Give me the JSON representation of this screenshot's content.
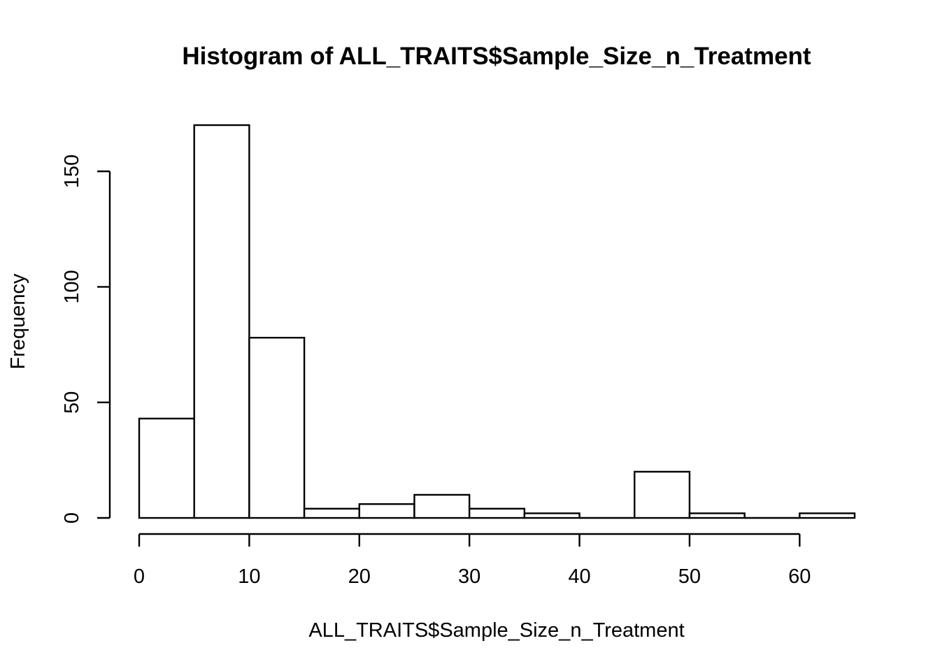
{
  "chart_data": {
    "type": "bar",
    "title": "Histogram of ALL_TRAITS$Sample_Size_n_Treatment",
    "xlabel": "ALL_TRAITS$Sample_Size_n_Treatment",
    "ylabel": "Frequency",
    "bins": [
      {
        "start": 0,
        "end": 5,
        "count": 43
      },
      {
        "start": 5,
        "end": 10,
        "count": 170
      },
      {
        "start": 10,
        "end": 15,
        "count": 78
      },
      {
        "start": 15,
        "end": 20,
        "count": 4
      },
      {
        "start": 20,
        "end": 25,
        "count": 6
      },
      {
        "start": 25,
        "end": 30,
        "count": 10
      },
      {
        "start": 30,
        "end": 35,
        "count": 4
      },
      {
        "start": 35,
        "end": 40,
        "count": 2
      },
      {
        "start": 40,
        "end": 45,
        "count": 0
      },
      {
        "start": 45,
        "end": 50,
        "count": 20
      },
      {
        "start": 50,
        "end": 55,
        "count": 2
      },
      {
        "start": 55,
        "end": 60,
        "count": 0
      },
      {
        "start": 60,
        "end": 65,
        "count": 2
      }
    ],
    "xlim": [
      0,
      65
    ],
    "ylim": [
      0,
      170
    ],
    "x_ticks": [
      0,
      10,
      20,
      30,
      40,
      50,
      60
    ],
    "y_ticks": [
      0,
      50,
      100,
      150
    ],
    "grid": false,
    "bar_fill": "#ffffff",
    "bar_stroke": "#000000"
  }
}
